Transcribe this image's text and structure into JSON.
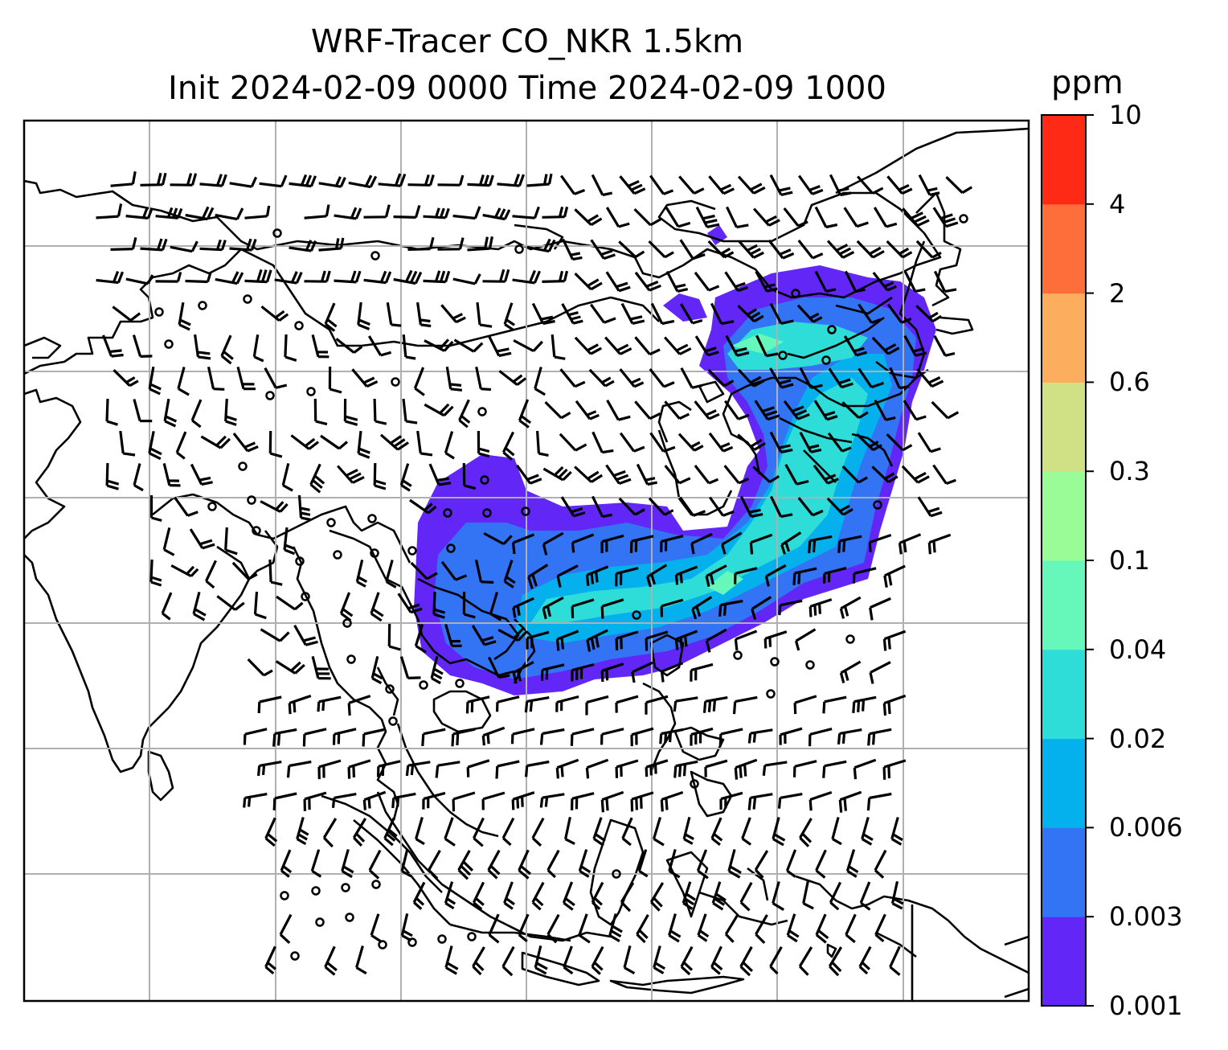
{
  "title": {
    "line1": "WRF-Tracer CO_NKR 1.5km",
    "line2": "Init 2024-02-09 0000 Time 2024-02-09 1000"
  },
  "colorbar": {
    "unit": "ppm",
    "levels": [
      "0.001",
      "0.003",
      "0.006",
      "0.02",
      "0.04",
      "0.1",
      "0.3",
      "0.6",
      "2",
      "4",
      "10"
    ],
    "colors": [
      "#6227f7",
      "#3374f4",
      "#05b1ec",
      "#2edcd8",
      "#66f8bb",
      "#99fc96",
      "#cfe184",
      "#fdad5e",
      "#fe6e3b",
      "#ff2a16"
    ]
  },
  "map": {
    "variable": "CO tracer concentration",
    "overlay": "wind barbs",
    "gridlines": true,
    "coastlines": true
  }
}
